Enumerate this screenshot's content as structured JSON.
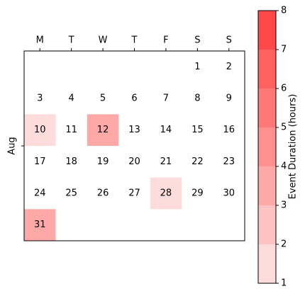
{
  "chart_data": {
    "type": "calendar_heatmap",
    "month": "Aug",
    "weekdays": [
      "M",
      "T",
      "W",
      "T",
      "F",
      "S",
      "S"
    ],
    "weeks": [
      [
        null,
        null,
        null,
        null,
        null,
        1,
        2
      ],
      [
        3,
        4,
        5,
        6,
        7,
        8,
        9
      ],
      [
        10,
        11,
        12,
        13,
        14,
        15,
        16
      ],
      [
        17,
        18,
        19,
        20,
        21,
        22,
        23
      ],
      [
        24,
        25,
        26,
        27,
        28,
        29,
        30
      ],
      [
        31,
        null,
        null,
        null,
        null,
        null,
        null
      ]
    ],
    "values": [
      [
        null,
        null,
        null,
        null,
        null,
        null,
        null
      ],
      [
        null,
        null,
        null,
        null,
        null,
        null,
        null
      ],
      [
        1.5,
        null,
        3.5,
        null,
        null,
        null,
        null
      ],
      [
        null,
        null,
        null,
        null,
        null,
        null,
        null
      ],
      [
        null,
        null,
        null,
        null,
        1.5,
        null,
        null
      ],
      [
        3.5,
        null,
        null,
        null,
        null,
        null,
        null
      ]
    ],
    "colorbar": {
      "label": "Event Duration (hours)",
      "lim": [
        1,
        8
      ],
      "ticks": [
        1,
        2,
        3,
        4,
        5,
        6,
        7,
        8
      ],
      "colors": [
        "#ffdcdc",
        "#ffc2c2",
        "#ffa8a8",
        "#ff9090",
        "#ff7878",
        "#ff6060",
        "#ff4848"
      ]
    }
  }
}
